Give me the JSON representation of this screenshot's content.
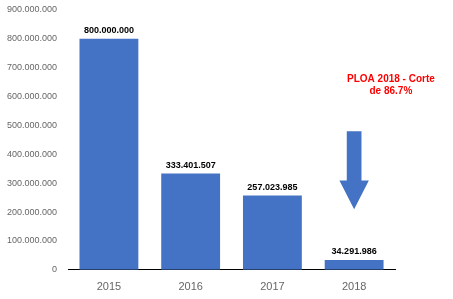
{
  "chart_data": {
    "type": "bar",
    "categories": [
      "2015",
      "2016",
      "2017",
      "2018"
    ],
    "values": [
      800000000,
      333401507,
      257023985,
      34291986
    ],
    "value_labels": [
      "800.000.000",
      "333.401.507",
      "257.023.985",
      "34.291.986"
    ],
    "data_labels": true,
    "color": "#4472C4",
    "ylim": [
      0,
      900000000
    ],
    "yticks": [
      0,
      {
        "value": 100000000,
        "label": "100.000.000"
      },
      {
        "value": 200000000,
        "label": "200.000.000"
      },
      {
        "value": 300000000,
        "label": "300.000.000"
      },
      {
        "value": 400000000,
        "label": "400.000.000"
      },
      {
        "value": 500000000,
        "label": "500.000.000"
      },
      {
        "value": 600000000,
        "label": "600.000.000"
      },
      {
        "value": 700000000,
        "label": "700.000.000"
      },
      {
        "value": 800000000,
        "label": "800.000.000"
      },
      {
        "value": 900000000,
        "label": "900.000.000"
      }
    ],
    "grid": false,
    "annotations": [
      {
        "text": "PLOA 2018 - Corte\nde 86.7%",
        "color": "#FF0000"
      }
    ]
  }
}
